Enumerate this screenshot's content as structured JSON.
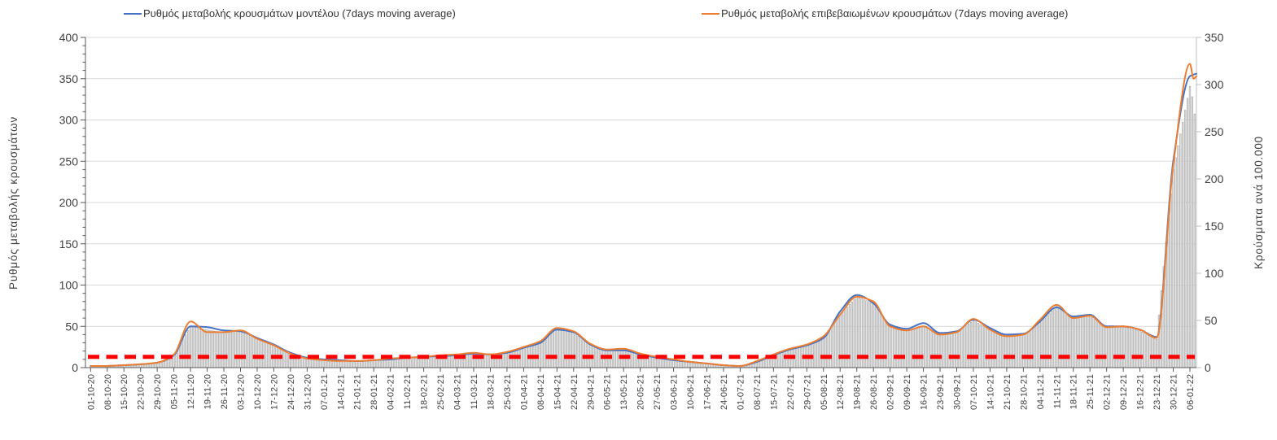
{
  "legend": {
    "model_label": "Ρυθμός μεταβολής κρουσμάτων μοντέλου (7days moving average)",
    "confirmed_label": "Ρυθμός μεταβολής επιβεβαιωμένων κρουσμάτων (7days moving average)"
  },
  "colors": {
    "model_line": "#4472C4",
    "confirmed_line": "#ED7D31",
    "threshold": "#FF0000",
    "bar_fill": "#E7E7E7",
    "bar_stroke": "#9C9C9C",
    "grid": "#D9D9D9",
    "axis_line": "#595959",
    "right_axis_line": "#BFBFBF",
    "tick_label": "#404040"
  },
  "chart_data": {
    "type": "line+bar",
    "legend_position": "top",
    "grid": "horizontal",
    "x_labels": [
      "01-10-20",
      "08-10-20",
      "15-10-20",
      "22-10-20",
      "29-10-20",
      "05-11-20",
      "12-11-20",
      "19-11-20",
      "26-11-20",
      "03-12-20",
      "10-12-20",
      "17-12-20",
      "24-12-20",
      "31-12-20",
      "07-01-21",
      "14-01-21",
      "21-01-21",
      "28-01-21",
      "04-02-21",
      "11-02-21",
      "18-02-21",
      "25-02-21",
      "04-03-21",
      "11-03-21",
      "18-03-21",
      "25-03-21",
      "01-04-21",
      "08-04-21",
      "15-04-21",
      "22-04-21",
      "29-04-21",
      "06-05-21",
      "13-05-21",
      "20-05-21",
      "27-05-21",
      "03-06-21",
      "10-06-21",
      "17-06-21",
      "24-06-21",
      "01-07-21",
      "08-07-21",
      "15-07-21",
      "22-07-21",
      "29-07-21",
      "05-08-21",
      "12-08-21",
      "19-08-21",
      "26-08-21",
      "02-09-21",
      "09-09-21",
      "16-09-21",
      "23-09-21",
      "30-09-21",
      "07-10-21",
      "14-10-21",
      "21-10-21",
      "28-10-21",
      "04-11-21",
      "11-11-21",
      "18-11-21",
      "25-11-21",
      "02-12-21",
      "09-12-21",
      "16-12-21",
      "23-12-21",
      "30-12-21",
      "06-01-22"
    ],
    "series": [
      {
        "name": "Ρυθμός μεταβολής κρουσμάτων μοντέλου (7days moving average)",
        "type": "line",
        "axis": "left",
        "color": "#4472C4",
        "values": [
          2,
          2,
          3,
          4,
          6,
          15,
          50,
          49,
          45,
          44,
          36,
          28,
          18,
          12,
          10,
          9,
          8,
          9,
          10,
          12,
          13,
          14,
          15,
          17,
          16,
          18,
          24,
          30,
          46,
          43,
          28,
          21,
          21,
          16,
          12,
          9,
          7,
          5,
          3,
          2,
          7,
          15,
          22,
          27,
          36,
          68,
          88,
          78,
          52,
          47,
          54,
          42,
          44,
          58,
          48,
          40,
          41,
          56,
          73,
          62,
          64,
          50,
          50,
          46,
          37,
          250,
          353
        ],
        "tail_values": [
          355,
          356
        ]
      },
      {
        "name": "Ρυθμός μεταβολής επιβεβαιωμένων κρουσμάτων (7days moving average)",
        "type": "line",
        "axis": "left",
        "color": "#ED7D31",
        "values": [
          2,
          2,
          3,
          4,
          6,
          16,
          56,
          43,
          43,
          45,
          35,
          27,
          17,
          11,
          9,
          8,
          8,
          9,
          11,
          12,
          13,
          15,
          16,
          18,
          16,
          19,
          25,
          32,
          48,
          44,
          29,
          22,
          23,
          17,
          13,
          10,
          7,
          5,
          3,
          2,
          8,
          16,
          23,
          28,
          38,
          64,
          86,
          80,
          50,
          45,
          50,
          40,
          43,
          59,
          46,
          38,
          40,
          58,
          76,
          60,
          63,
          49,
          50,
          46,
          36,
          245,
          368
        ],
        "tail_values": [
          350,
          353
        ]
      }
    ],
    "bars": {
      "name": "Κρούσματα ανά 100.000",
      "type": "bar",
      "axis": "right",
      "granularity": "daily",
      "weekly_values": [
        1,
        1,
        2,
        3,
        5,
        12,
        44,
        40,
        37,
        39,
        31,
        24,
        14,
        9,
        8,
        7,
        7,
        8,
        9,
        10,
        11,
        12,
        13,
        15,
        14,
        16,
        21,
        27,
        41,
        37,
        25,
        18,
        19,
        14,
        10,
        8,
        5,
        4,
        2,
        1,
        6,
        13,
        19,
        24,
        31,
        56,
        75,
        68,
        44,
        39,
        44,
        35,
        37,
        50,
        40,
        33,
        35,
        48,
        65,
        52,
        55,
        42,
        43,
        39,
        30,
        210,
        298
      ],
      "tail_values": [
        283,
        260
      ]
    },
    "threshold_line": {
      "value": 13,
      "axis": "left",
      "color": "#FF0000",
      "style": "dashed"
    },
    "left_axis": {
      "title": "Ρυθμός μεταβολής κρουσμάτων",
      "min": 0,
      "max": 400,
      "step": 50,
      "minor_step": 10
    },
    "right_axis": {
      "title": "Κρούσματα ανά 100.000",
      "min": 0,
      "max": 350,
      "step": 50
    }
  }
}
